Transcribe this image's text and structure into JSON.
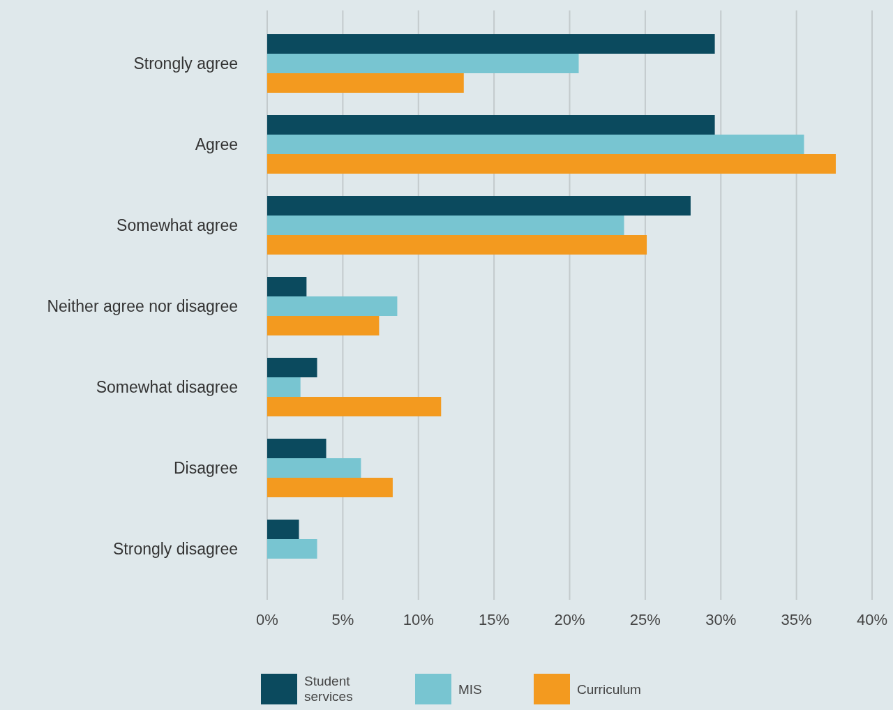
{
  "chart_data": {
    "type": "bar",
    "orientation": "horizontal",
    "categories": [
      "Strongly agree",
      "Agree",
      "Somewhat agree",
      "Neither agree nor disagree",
      "Somewhat disagree",
      "Disagree",
      "Strongly disagree"
    ],
    "series": [
      {
        "name": "Student services",
        "color": "#0b4a5e",
        "values": [
          29.6,
          29.6,
          28.0,
          2.6,
          3.3,
          3.9,
          2.1
        ]
      },
      {
        "name": "MIS",
        "color": "#78c5d1",
        "values": [
          20.6,
          35.5,
          23.6,
          8.6,
          2.2,
          6.2,
          3.3
        ]
      },
      {
        "name": "Curriculum",
        "color": "#f39a1f",
        "values": [
          13.0,
          37.6,
          25.1,
          7.4,
          11.5,
          8.3,
          null
        ]
      }
    ],
    "xlim": [
      0,
      40
    ],
    "xticks": [
      {
        "value": 0,
        "label": "0%"
      },
      {
        "value": 5,
        "label": "5%"
      },
      {
        "value": 10,
        "label": "10%"
      },
      {
        "value": 15,
        "label": "15%"
      },
      {
        "value": 20,
        "label": "20%"
      },
      {
        "value": 25,
        "label": "25%"
      },
      {
        "value": 30,
        "label": "30%"
      },
      {
        "value": 35,
        "label": "35%"
      },
      {
        "value": 40,
        "label": "40%"
      }
    ],
    "grid": "x",
    "legend": "bottom"
  }
}
